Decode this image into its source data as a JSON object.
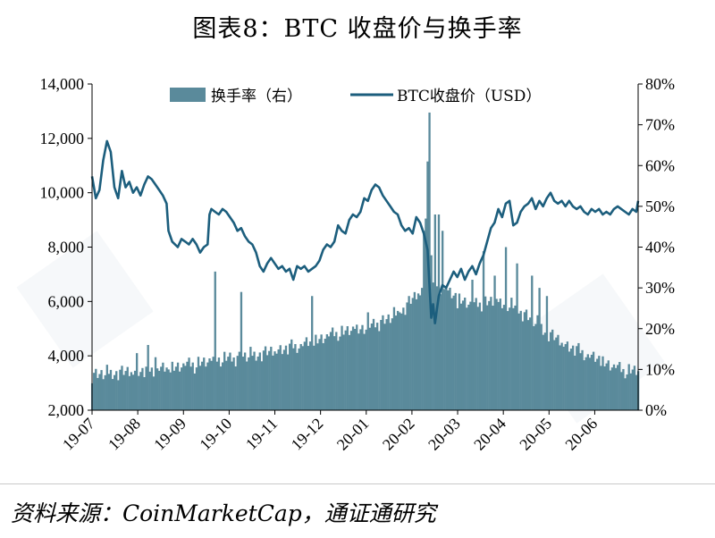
{
  "title": "图表8：BTC 收盘价与换手率",
  "source": "资料来源：CoinMarketCap，通证通研究",
  "colors": {
    "turnover": "#5a8a9b",
    "price": "#1c5e7d",
    "axis": "#000000"
  },
  "chart_data": {
    "type": "bar+line",
    "title": "图表8：BTC 收盘价与换手率",
    "x_labels": [
      "19-07",
      "19-08",
      "19-09",
      "19-10",
      "19-11",
      "19-12",
      "20-01",
      "20-02",
      "20-03",
      "20-04",
      "20-05",
      "20-06"
    ],
    "left_axis": {
      "ylim": [
        2000,
        14000
      ],
      "ticks": [
        "2,000",
        "4,000",
        "6,000",
        "8,000",
        "10,000",
        "12,000",
        "14,000"
      ]
    },
    "right_axis": {
      "ylim": [
        0,
        80
      ],
      "ticks": [
        "0%",
        "10%",
        "20%",
        "30%",
        "40%",
        "50%",
        "60%",
        "70%",
        "80%"
      ]
    },
    "legend": {
      "placement": "top-center",
      "entries": [
        "换手率（右）",
        "BTC收盘价（USD）"
      ]
    },
    "series": [
      {
        "name": "BTC收盘价（USD）",
        "axis": "left",
        "type": "line",
        "points": [
          [
            0,
            10600
          ],
          [
            2,
            9800
          ],
          [
            4,
            10100
          ],
          [
            6,
            11200
          ],
          [
            8,
            11900
          ],
          [
            10,
            11500
          ],
          [
            12,
            10200
          ],
          [
            14,
            9800
          ],
          [
            16,
            10800
          ],
          [
            18,
            10200
          ],
          [
            20,
            10400
          ],
          [
            22,
            10000
          ],
          [
            24,
            10200
          ],
          [
            26,
            9900
          ],
          [
            28,
            10300
          ],
          [
            30,
            10600
          ],
          [
            32,
            10500
          ],
          [
            34,
            10300
          ],
          [
            36,
            10100
          ],
          [
            38,
            9900
          ],
          [
            40,
            9600
          ],
          [
            41,
            8600
          ],
          [
            43,
            8200
          ],
          [
            46,
            8000
          ],
          [
            48,
            8300
          ],
          [
            50,
            8200
          ],
          [
            52,
            8100
          ],
          [
            54,
            8300
          ],
          [
            56,
            8100
          ],
          [
            58,
            7800
          ],
          [
            60,
            8000
          ],
          [
            62,
            8100
          ],
          [
            63,
            9200
          ],
          [
            64,
            9400
          ],
          [
            66,
            9300
          ],
          [
            68,
            9200
          ],
          [
            70,
            9400
          ],
          [
            72,
            9300
          ],
          [
            74,
            9100
          ],
          [
            76,
            8900
          ],
          [
            78,
            8600
          ],
          [
            80,
            8700
          ],
          [
            82,
            8400
          ],
          [
            84,
            8200
          ],
          [
            86,
            8100
          ],
          [
            88,
            7800
          ],
          [
            90,
            7300
          ],
          [
            92,
            7100
          ],
          [
            94,
            7400
          ],
          [
            96,
            7600
          ],
          [
            98,
            7400
          ],
          [
            100,
            7200
          ],
          [
            102,
            7300
          ],
          [
            104,
            7100
          ],
          [
            106,
            7200
          ],
          [
            108,
            6800
          ],
          [
            110,
            7300
          ],
          [
            112,
            7200
          ],
          [
            114,
            7300
          ],
          [
            116,
            7100
          ],
          [
            118,
            7200
          ],
          [
            120,
            7300
          ],
          [
            122,
            7500
          ],
          [
            124,
            7900
          ],
          [
            126,
            8100
          ],
          [
            128,
            8000
          ],
          [
            130,
            8200
          ],
          [
            132,
            8800
          ],
          [
            134,
            8600
          ],
          [
            136,
            8500
          ],
          [
            138,
            9000
          ],
          [
            140,
            9200
          ],
          [
            142,
            9100
          ],
          [
            144,
            9300
          ],
          [
            146,
            9800
          ],
          [
            148,
            9700
          ],
          [
            150,
            10100
          ],
          [
            152,
            10300
          ],
          [
            154,
            10200
          ],
          [
            156,
            9900
          ],
          [
            158,
            9700
          ],
          [
            160,
            9500
          ],
          [
            162,
            9300
          ],
          [
            164,
            9200
          ],
          [
            166,
            8800
          ],
          [
            168,
            8600
          ],
          [
            170,
            8700
          ],
          [
            172,
            8500
          ],
          [
            174,
            9100
          ],
          [
            176,
            8900
          ],
          [
            178,
            8500
          ],
          [
            180,
            7900
          ],
          [
            182,
            5400
          ],
          [
            183,
            5900
          ],
          [
            184,
            5200
          ],
          [
            186,
            6200
          ],
          [
            188,
            6600
          ],
          [
            190,
            6500
          ],
          [
            192,
            6800
          ],
          [
            194,
            7100
          ],
          [
            196,
            6900
          ],
          [
            198,
            7200
          ],
          [
            200,
            6800
          ],
          [
            202,
            7100
          ],
          [
            204,
            7300
          ],
          [
            206,
            7000
          ],
          [
            208,
            7400
          ],
          [
            210,
            7700
          ],
          [
            212,
            8200
          ],
          [
            214,
            8700
          ],
          [
            216,
            8900
          ],
          [
            218,
            9400
          ],
          [
            220,
            9100
          ],
          [
            222,
            9600
          ],
          [
            224,
            9700
          ],
          [
            226,
            8800
          ],
          [
            228,
            8900
          ],
          [
            230,
            9300
          ],
          [
            232,
            9500
          ],
          [
            234,
            9600
          ],
          [
            236,
            9800
          ],
          [
            238,
            9400
          ],
          [
            240,
            9700
          ],
          [
            242,
            9500
          ],
          [
            244,
            9800
          ],
          [
            246,
            10000
          ],
          [
            248,
            9700
          ],
          [
            250,
            9600
          ],
          [
            252,
            9700
          ],
          [
            254,
            9500
          ],
          [
            256,
            9700
          ],
          [
            258,
            9500
          ],
          [
            260,
            9400
          ],
          [
            262,
            9500
          ],
          [
            264,
            9300
          ],
          [
            266,
            9200
          ],
          [
            268,
            9400
          ],
          [
            270,
            9300
          ],
          [
            272,
            9400
          ],
          [
            274,
            9200
          ],
          [
            276,
            9300
          ],
          [
            278,
            9200
          ],
          [
            280,
            9400
          ],
          [
            282,
            9500
          ],
          [
            284,
            9400
          ],
          [
            286,
            9300
          ],
          [
            288,
            9200
          ],
          [
            290,
            9400
          ],
          [
            292,
            9300
          ],
          [
            293,
            9700
          ]
        ]
      },
      {
        "name": "换手率（右）",
        "axis": "right",
        "type": "bar",
        "peaks": [
          [
            24,
            14
          ],
          [
            30,
            16
          ],
          [
            34,
            13
          ],
          [
            41,
            10
          ],
          [
            55,
            9
          ],
          [
            66,
            34
          ],
          [
            80,
            29
          ],
          [
            118,
            28
          ],
          [
            148,
            24
          ],
          [
            165,
            24
          ],
          [
            170,
            28
          ],
          [
            177,
            30
          ],
          [
            178,
            44
          ],
          [
            179,
            47
          ],
          [
            180,
            61
          ],
          [
            181,
            73
          ],
          [
            182,
            38
          ],
          [
            184,
            48
          ],
          [
            186,
            48
          ],
          [
            188,
            44
          ],
          [
            190,
            30
          ],
          [
            196,
            25
          ],
          [
            204,
            32
          ],
          [
            210,
            39
          ],
          [
            216,
            33
          ],
          [
            222,
            40
          ],
          [
            228,
            36
          ],
          [
            236,
            33
          ],
          [
            240,
            30
          ],
          [
            244,
            28
          ]
        ],
        "baseline": [
          [
            0,
            8
          ],
          [
            30,
            9
          ],
          [
            60,
            11
          ],
          [
            90,
            13
          ],
          [
            110,
            15
          ],
          [
            130,
            18
          ],
          [
            150,
            20
          ],
          [
            165,
            23
          ],
          [
            175,
            28
          ],
          [
            185,
            30
          ],
          [
            195,
            27
          ],
          [
            205,
            25
          ],
          [
            215,
            26
          ],
          [
            225,
            25
          ],
          [
            235,
            22
          ],
          [
            245,
            18
          ],
          [
            255,
            15
          ],
          [
            265,
            13
          ],
          [
            275,
            11
          ],
          [
            285,
            9
          ],
          [
            293,
            9
          ]
        ]
      }
    ]
  }
}
